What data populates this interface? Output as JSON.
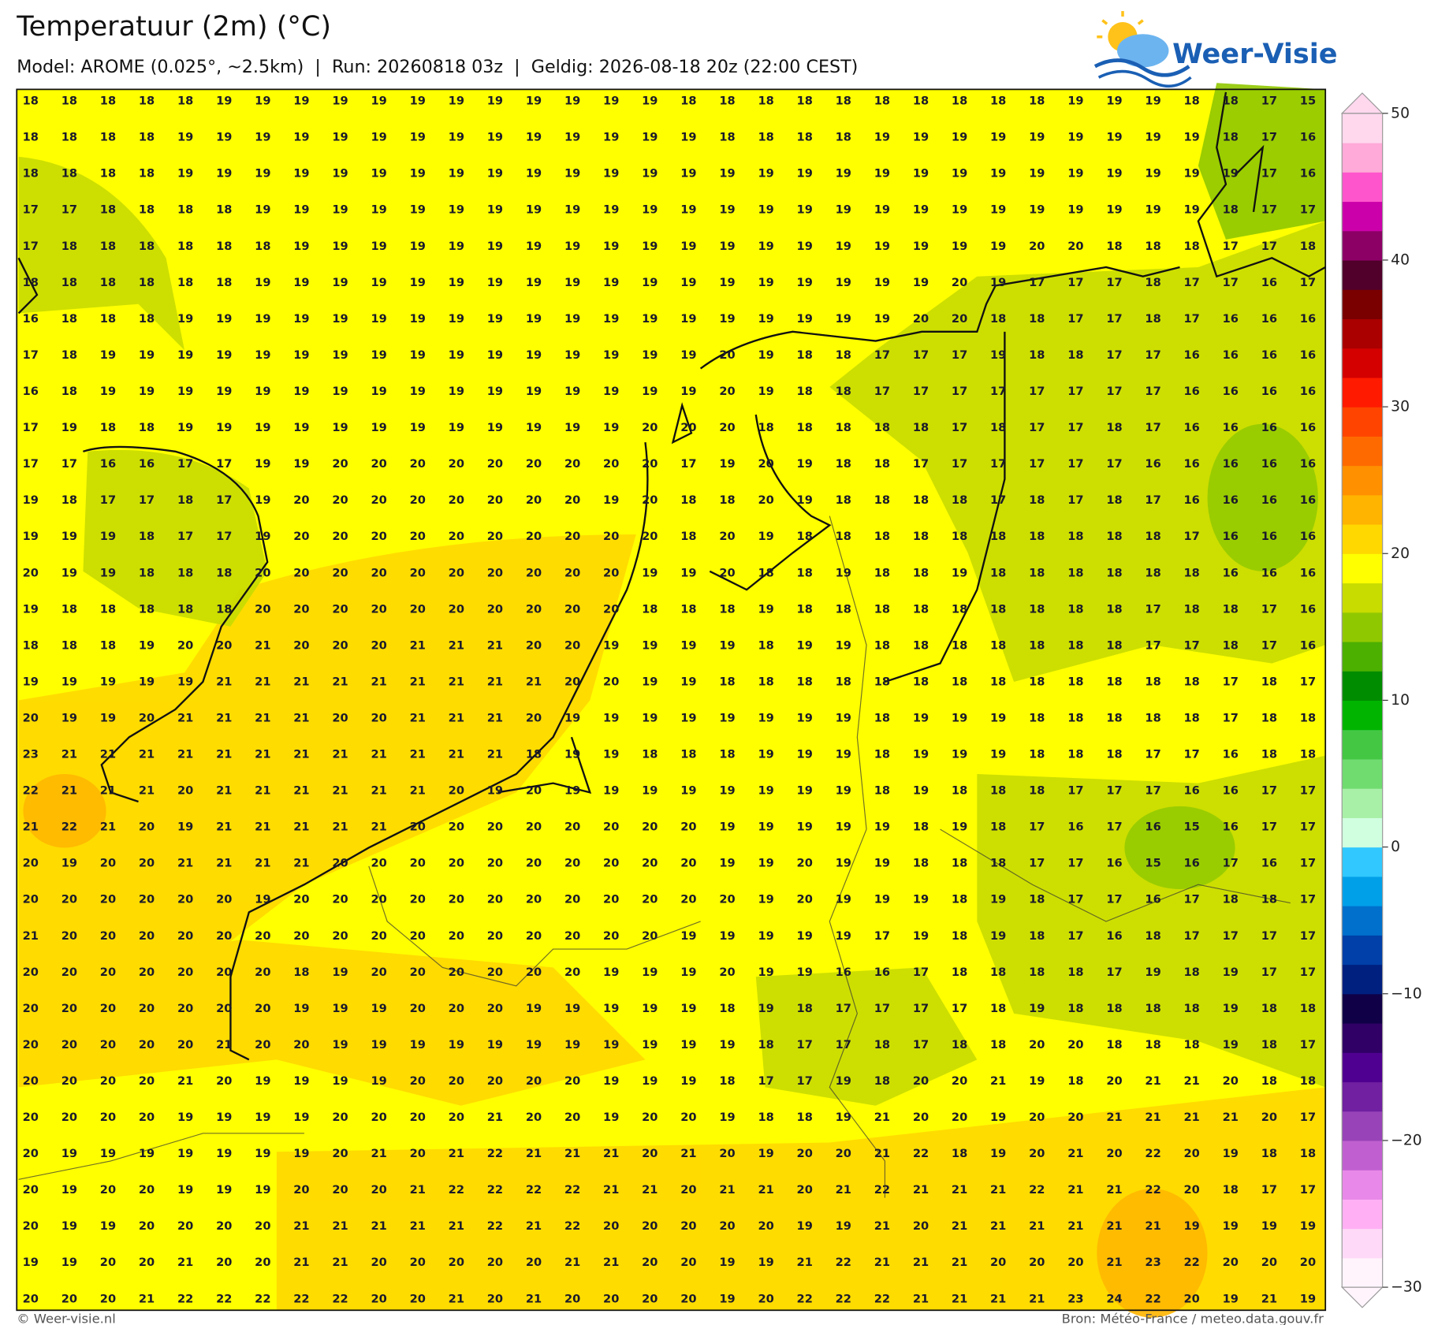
{
  "header": {
    "title": "Temperatuur (2m) (°C)",
    "subtitle": "Model: AROME (0.025°, ~2.5km)  |  Run: 20260818 03z  |  Geldig: 2026-08-18 20z (22:00 CEST)"
  },
  "logo": {
    "text": "Weer-Visie"
  },
  "grid": {
    "values": [
      [
        18,
        18,
        18,
        18,
        18,
        19,
        19,
        19,
        19,
        19,
        19,
        19,
        19,
        19,
        19,
        19,
        19,
        18,
        18,
        18,
        18,
        18,
        18,
        18,
        18,
        18,
        18,
        19,
        19,
        19,
        18,
        18,
        17,
        15
      ],
      [
        18,
        18,
        18,
        18,
        19,
        19,
        19,
        19,
        19,
        19,
        19,
        19,
        19,
        19,
        19,
        19,
        19,
        19,
        18,
        18,
        18,
        18,
        19,
        19,
        19,
        19,
        19,
        19,
        19,
        19,
        19,
        18,
        17,
        16
      ],
      [
        18,
        18,
        18,
        18,
        19,
        19,
        19,
        19,
        19,
        19,
        19,
        19,
        19,
        19,
        19,
        19,
        19,
        19,
        19,
        19,
        19,
        19,
        19,
        19,
        19,
        19,
        19,
        19,
        19,
        19,
        19,
        19,
        17,
        16
      ],
      [
        17,
        17,
        18,
        18,
        18,
        18,
        19,
        19,
        19,
        19,
        19,
        19,
        19,
        19,
        19,
        19,
        19,
        19,
        19,
        19,
        19,
        19,
        19,
        19,
        19,
        19,
        19,
        19,
        19,
        19,
        19,
        18,
        17,
        17
      ],
      [
        17,
        18,
        18,
        18,
        18,
        18,
        18,
        19,
        19,
        19,
        19,
        19,
        19,
        19,
        19,
        19,
        19,
        19,
        19,
        19,
        19,
        19,
        19,
        19,
        19,
        19,
        20,
        20,
        18,
        18,
        18,
        17,
        17,
        18
      ],
      [
        18,
        18,
        18,
        18,
        18,
        18,
        19,
        19,
        19,
        19,
        19,
        19,
        19,
        19,
        19,
        19,
        19,
        19,
        19,
        19,
        19,
        19,
        19,
        19,
        20,
        19,
        17,
        17,
        17,
        18,
        17,
        17,
        16,
        17
      ],
      [
        16,
        18,
        18,
        18,
        19,
        19,
        19,
        19,
        19,
        19,
        19,
        19,
        19,
        19,
        19,
        19,
        19,
        19,
        19,
        19,
        19,
        19,
        19,
        20,
        20,
        18,
        18,
        17,
        17,
        18,
        17,
        16,
        16,
        16
      ],
      [
        17,
        18,
        19,
        19,
        19,
        19,
        19,
        19,
        19,
        19,
        19,
        19,
        19,
        19,
        19,
        19,
        19,
        19,
        20,
        19,
        18,
        18,
        17,
        17,
        17,
        19,
        18,
        18,
        17,
        17,
        16,
        16,
        16,
        16
      ],
      [
        16,
        18,
        19,
        19,
        19,
        19,
        19,
        19,
        19,
        19,
        19,
        19,
        19,
        19,
        19,
        19,
        19,
        19,
        20,
        19,
        18,
        18,
        17,
        17,
        17,
        17,
        17,
        17,
        17,
        17,
        16,
        16,
        16,
        16
      ],
      [
        17,
        19,
        18,
        18,
        19,
        19,
        19,
        19,
        19,
        19,
        19,
        19,
        19,
        19,
        19,
        19,
        20,
        20,
        20,
        18,
        18,
        18,
        18,
        18,
        17,
        18,
        17,
        17,
        18,
        17,
        16,
        16,
        16,
        16
      ],
      [
        17,
        17,
        16,
        16,
        17,
        17,
        19,
        19,
        20,
        20,
        20,
        20,
        20,
        20,
        20,
        20,
        20,
        17,
        19,
        20,
        19,
        18,
        18,
        17,
        17,
        17,
        17,
        17,
        17,
        16,
        16,
        16,
        16,
        16
      ],
      [
        19,
        18,
        17,
        17,
        18,
        17,
        19,
        20,
        20,
        20,
        20,
        20,
        20,
        20,
        20,
        19,
        20,
        18,
        18,
        20,
        19,
        18,
        18,
        18,
        18,
        17,
        18,
        17,
        18,
        17,
        16,
        16,
        16,
        16
      ],
      [
        19,
        19,
        19,
        18,
        17,
        17,
        19,
        20,
        20,
        20,
        20,
        20,
        20,
        20,
        20,
        20,
        20,
        18,
        20,
        19,
        18,
        18,
        18,
        18,
        18,
        18,
        18,
        18,
        18,
        18,
        17,
        16,
        16,
        16
      ],
      [
        20,
        19,
        19,
        18,
        18,
        18,
        20,
        20,
        20,
        20,
        20,
        20,
        20,
        20,
        20,
        20,
        19,
        19,
        20,
        18,
        18,
        19,
        18,
        18,
        19,
        18,
        18,
        18,
        18,
        18,
        18,
        16,
        16,
        16
      ],
      [
        19,
        18,
        18,
        18,
        18,
        18,
        20,
        20,
        20,
        20,
        20,
        20,
        20,
        20,
        20,
        20,
        18,
        18,
        18,
        19,
        18,
        18,
        18,
        18,
        18,
        18,
        18,
        18,
        18,
        17,
        18,
        18,
        17,
        16
      ],
      [
        18,
        18,
        18,
        19,
        20,
        20,
        21,
        20,
        20,
        20,
        21,
        21,
        21,
        20,
        20,
        19,
        19,
        19,
        19,
        18,
        19,
        19,
        18,
        18,
        18,
        18,
        18,
        18,
        18,
        17,
        17,
        18,
        17,
        16
      ],
      [
        19,
        19,
        19,
        19,
        19,
        21,
        21,
        21,
        21,
        21,
        21,
        21,
        21,
        21,
        20,
        20,
        19,
        19,
        18,
        18,
        18,
        18,
        18,
        18,
        18,
        18,
        18,
        18,
        18,
        18,
        18,
        17,
        18,
        17
      ],
      [
        20,
        19,
        19,
        20,
        21,
        21,
        21,
        21,
        20,
        20,
        21,
        21,
        21,
        20,
        19,
        19,
        19,
        19,
        19,
        19,
        19,
        19,
        18,
        19,
        19,
        19,
        18,
        18,
        18,
        18,
        18,
        17,
        18,
        18
      ],
      [
        23,
        21,
        21,
        21,
        21,
        21,
        21,
        21,
        21,
        21,
        21,
        21,
        21,
        18,
        19,
        19,
        18,
        18,
        18,
        19,
        19,
        19,
        18,
        19,
        19,
        19,
        18,
        18,
        18,
        17,
        17,
        16,
        18,
        18
      ],
      [
        22,
        21,
        21,
        21,
        20,
        21,
        21,
        21,
        21,
        21,
        21,
        20,
        19,
        20,
        19,
        19,
        19,
        19,
        19,
        19,
        19,
        19,
        18,
        19,
        18,
        18,
        18,
        17,
        17,
        17,
        16,
        16,
        17,
        17
      ],
      [
        21,
        22,
        21,
        20,
        19,
        21,
        21,
        21,
        21,
        21,
        20,
        20,
        20,
        20,
        20,
        20,
        20,
        20,
        19,
        19,
        19,
        19,
        19,
        18,
        19,
        18,
        17,
        16,
        17,
        16,
        15,
        16,
        17,
        17
      ],
      [
        20,
        19,
        20,
        20,
        21,
        21,
        21,
        21,
        20,
        20,
        20,
        20,
        20,
        20,
        20,
        20,
        20,
        20,
        19,
        19,
        20,
        19,
        19,
        18,
        18,
        18,
        17,
        17,
        16,
        15,
        16,
        17,
        16,
        17
      ],
      [
        20,
        20,
        20,
        20,
        20,
        20,
        19,
        20,
        20,
        20,
        20,
        20,
        20,
        20,
        20,
        20,
        20,
        20,
        20,
        19,
        20,
        19,
        19,
        19,
        18,
        19,
        18,
        17,
        17,
        16,
        17,
        18,
        18,
        17
      ],
      [
        21,
        20,
        20,
        20,
        20,
        20,
        20,
        20,
        20,
        20,
        20,
        20,
        20,
        20,
        20,
        20,
        20,
        19,
        19,
        19,
        19,
        19,
        17,
        19,
        18,
        19,
        18,
        17,
        16,
        18,
        17,
        17,
        17,
        17
      ],
      [
        20,
        20,
        20,
        20,
        20,
        20,
        20,
        18,
        19,
        20,
        20,
        20,
        20,
        20,
        20,
        19,
        19,
        19,
        20,
        19,
        19,
        16,
        16,
        17,
        18,
        18,
        18,
        18,
        17,
        19,
        18,
        19,
        17,
        17
      ],
      [
        20,
        20,
        20,
        20,
        20,
        20,
        20,
        19,
        19,
        19,
        20,
        20,
        20,
        19,
        19,
        19,
        19,
        19,
        18,
        19,
        18,
        17,
        17,
        17,
        17,
        18,
        19,
        18,
        18,
        18,
        18,
        19,
        18,
        18
      ],
      [
        20,
        20,
        20,
        20,
        20,
        21,
        20,
        20,
        19,
        19,
        19,
        19,
        19,
        19,
        19,
        19,
        19,
        19,
        19,
        18,
        17,
        17,
        18,
        17,
        18,
        18,
        20,
        20,
        18,
        18,
        18,
        19,
        18,
        17
      ],
      [
        20,
        20,
        20,
        20,
        21,
        20,
        19,
        19,
        19,
        19,
        20,
        20,
        20,
        20,
        20,
        19,
        19,
        19,
        18,
        17,
        17,
        19,
        18,
        20,
        20,
        21,
        19,
        18,
        20,
        21,
        21,
        20,
        18,
        18
      ],
      [
        20,
        20,
        20,
        20,
        19,
        19,
        19,
        19,
        20,
        20,
        20,
        20,
        21,
        20,
        20,
        19,
        20,
        20,
        19,
        18,
        18,
        19,
        21,
        20,
        20,
        19,
        20,
        20,
        21,
        21,
        21,
        21,
        20,
        17
      ],
      [
        20,
        19,
        19,
        19,
        19,
        19,
        19,
        19,
        20,
        21,
        20,
        21,
        22,
        21,
        21,
        21,
        20,
        21,
        20,
        19,
        20,
        20,
        21,
        22,
        18,
        19,
        20,
        21,
        20,
        22,
        20,
        19,
        18,
        18
      ],
      [
        20,
        19,
        20,
        20,
        19,
        19,
        19,
        20,
        20,
        20,
        21,
        22,
        22,
        22,
        22,
        21,
        21,
        20,
        21,
        21,
        20,
        21,
        22,
        21,
        21,
        21,
        22,
        21,
        21,
        22,
        20,
        18,
        17,
        17
      ],
      [
        20,
        19,
        19,
        20,
        20,
        20,
        20,
        21,
        21,
        21,
        21,
        21,
        22,
        21,
        22,
        20,
        20,
        20,
        20,
        20,
        19,
        19,
        21,
        20,
        21,
        21,
        21,
        21,
        21,
        21,
        19,
        19,
        19,
        19
      ],
      [
        19,
        19,
        20,
        20,
        21,
        20,
        20,
        21,
        21,
        20,
        20,
        20,
        20,
        20,
        21,
        21,
        20,
        20,
        19,
        19,
        21,
        22,
        21,
        21,
        21,
        20,
        20,
        20,
        21,
        23,
        22,
        20,
        20,
        20
      ],
      [
        20,
        20,
        20,
        21,
        22,
        22,
        22,
        22,
        22,
        20,
        20,
        21,
        20,
        21,
        20,
        20,
        20,
        20,
        19,
        20,
        22,
        22,
        22,
        21,
        21,
        21,
        21,
        23,
        24,
        22,
        20,
        19,
        21,
        19
      ]
    ]
  },
  "colorbar": {
    "lim": [
      -30,
      50
    ],
    "ticks": [
      50,
      40,
      30,
      20,
      10,
      0,
      {
        "value": -10,
        "label": "−10"
      },
      {
        "value": -20,
        "label": "−20"
      },
      {
        "value": -30,
        "label": "−30"
      }
    ],
    "colors": [
      "#fff4fc",
      "#ffdaf8",
      "#ffb0f4",
      "#e888e8",
      "#c060d0",
      "#9844b8",
      "#7020a0",
      "#500090",
      "#300066",
      "#100048",
      "#002080",
      "#0040a8",
      "#0070cc",
      "#00a0e8",
      "#30c8ff",
      "#d0ffe0",
      "#a8f0a8",
      "#70dc70",
      "#44c844",
      "#00b400",
      "#008c00",
      "#4cb000",
      "#90c800",
      "#c8dc00",
      "#ffff00",
      "#ffd800",
      "#ffb400",
      "#ff9000",
      "#ff6a00",
      "#ff4400",
      "#ff1a00",
      "#d40000",
      "#aa0000",
      "#7a0000",
      "#50002a",
      "#8c0066",
      "#cc00aa",
      "#ff55cc",
      "#ffaad8",
      "#ffd8ee"
    ]
  },
  "footer": {
    "left": "© Weer-visie.nl",
    "right": "Bron: Météo-France / meteo.data.gouv.fr"
  }
}
